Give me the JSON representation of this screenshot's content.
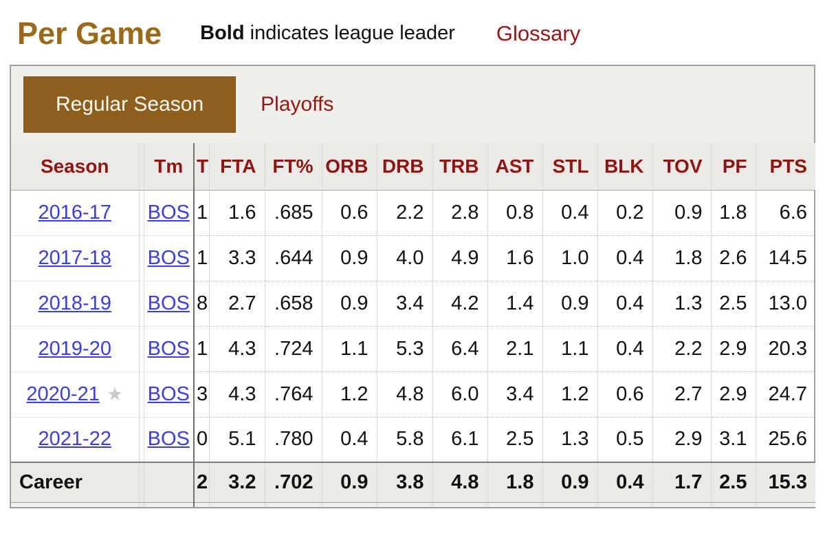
{
  "page_title": "Per Game",
  "legend": {
    "bold_word": "Bold",
    "rest": " indicates league leader"
  },
  "glossary_label": "Glossary",
  "tabs": [
    {
      "label": "Regular Season",
      "active": true
    },
    {
      "label": "Playoffs",
      "active": false
    }
  ],
  "icons": {
    "all_star": "★"
  },
  "colors": {
    "accent_gold": "#9a6a18",
    "tab_active_bg": "#8d5e1c",
    "link_red": "#9a1414",
    "header_red": "#911313",
    "link_blue": "#3b3bee",
    "panel_bg": "#ebeae7",
    "tabbar_bg": "#f0efec",
    "border_dark": "#6f6f6d",
    "border_mid": "#9e9d9a",
    "border_light": "#d9d8d5",
    "dotted_border": "#bcbcb9",
    "star_gray": "#c9c9c9"
  },
  "table": {
    "season_header": "Season",
    "tm_header": "Tm",
    "ft_clip_header": "T",
    "headers": [
      "FTA",
      "FT%",
      "ORB",
      "DRB",
      "TRB",
      "AST",
      "STL",
      "BLK",
      "TOV",
      "PF",
      "PTS"
    ],
    "rows": [
      {
        "season": "2016-17",
        "all_star": false,
        "tm": "BOS",
        "ft_clip": "1",
        "values": [
          "1.6",
          ".685",
          "0.6",
          "2.2",
          "2.8",
          "0.8",
          "0.4",
          "0.2",
          "0.9",
          "1.8",
          "6.6"
        ]
      },
      {
        "season": "2017-18",
        "all_star": false,
        "tm": "BOS",
        "ft_clip": "1",
        "values": [
          "3.3",
          ".644",
          "0.9",
          "4.0",
          "4.9",
          "1.6",
          "1.0",
          "0.4",
          "1.8",
          "2.6",
          "14.5"
        ]
      },
      {
        "season": "2018-19",
        "all_star": false,
        "tm": "BOS",
        "ft_clip": "8",
        "values": [
          "2.7",
          ".658",
          "0.9",
          "3.4",
          "4.2",
          "1.4",
          "0.9",
          "0.4",
          "1.3",
          "2.5",
          "13.0"
        ]
      },
      {
        "season": "2019-20",
        "all_star": false,
        "tm": "BOS",
        "ft_clip": "1",
        "values": [
          "4.3",
          ".724",
          "1.1",
          "5.3",
          "6.4",
          "2.1",
          "1.1",
          "0.4",
          "2.2",
          "2.9",
          "20.3"
        ]
      },
      {
        "season": "2020-21",
        "all_star": true,
        "tm": "BOS",
        "ft_clip": "3",
        "values": [
          "4.3",
          ".764",
          "1.2",
          "4.8",
          "6.0",
          "3.4",
          "1.2",
          "0.6",
          "2.7",
          "2.9",
          "24.7"
        ]
      },
      {
        "season": "2021-22",
        "all_star": false,
        "tm": "BOS",
        "ft_clip": "0",
        "values": [
          "5.1",
          ".780",
          "0.4",
          "5.8",
          "6.1",
          "2.5",
          "1.3",
          "0.5",
          "2.9",
          "3.1",
          "25.6"
        ]
      }
    ],
    "career": {
      "label": "Career",
      "tm": "",
      "ft_clip": "2",
      "values": [
        "3.2",
        ".702",
        "0.9",
        "3.8",
        "4.8",
        "1.8",
        "0.9",
        "0.4",
        "1.7",
        "2.5",
        "15.3"
      ]
    }
  }
}
